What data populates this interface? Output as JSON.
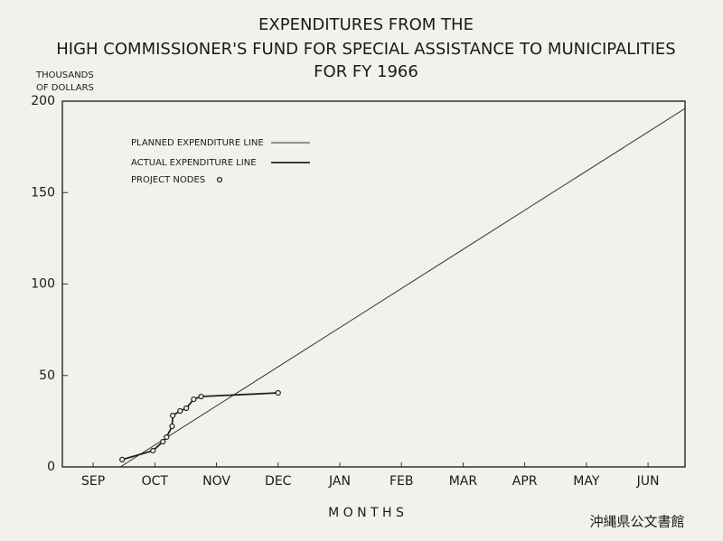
{
  "chart_data": {
    "type": "line",
    "title": [
      "EXPENDITURES FROM THE",
      "HIGH COMMISSIONER'S FUND FOR SPECIAL ASSISTANCE TO MUNICIPALITIES",
      "FOR FY 1966"
    ],
    "ylabel": [
      "THOUSANDS",
      "OF DOLLARS"
    ],
    "xlabel": "M O N T H S",
    "xlim": [
      0,
      10.1
    ],
    "xticks": [
      {
        "value": 0.5,
        "label": "SEP"
      },
      {
        "value": 1.5,
        "label": "OCT"
      },
      {
        "value": 2.5,
        "label": "NOV"
      },
      {
        "value": 3.5,
        "label": "DEC"
      },
      {
        "value": 4.5,
        "label": "JAN"
      },
      {
        "value": 5.5,
        "label": "FEB"
      },
      {
        "value": 6.5,
        "label": "MAR"
      },
      {
        "value": 7.5,
        "label": "APR"
      },
      {
        "value": 8.5,
        "label": "MAY"
      },
      {
        "value": 9.5,
        "label": "JUN"
      }
    ],
    "ylim": [
      0,
      200
    ],
    "yticks": [
      0,
      50,
      100,
      150,
      200
    ],
    "series": [
      {
        "name": "PLANNED EXPENDITURE LINE",
        "color": "#333333",
        "x": [
          0.94,
          10.1
        ],
        "values": [
          0,
          196
        ]
      },
      {
        "name": "ACTUAL EXPENDITURE LINE",
        "color": "#222222",
        "markers": true,
        "x": [
          0.97,
          1.47,
          1.63,
          1.69,
          1.78,
          1.79,
          1.91,
          2.01,
          2.13,
          2.25,
          3.5
        ],
        "values": [
          4.0,
          8.9,
          13.8,
          16.3,
          22.2,
          28.1,
          30.6,
          32.1,
          37.0,
          38.5,
          40.5
        ]
      }
    ],
    "marker_label": "PROJECT NODES"
  },
  "watermark": "沖縄県公文書館"
}
